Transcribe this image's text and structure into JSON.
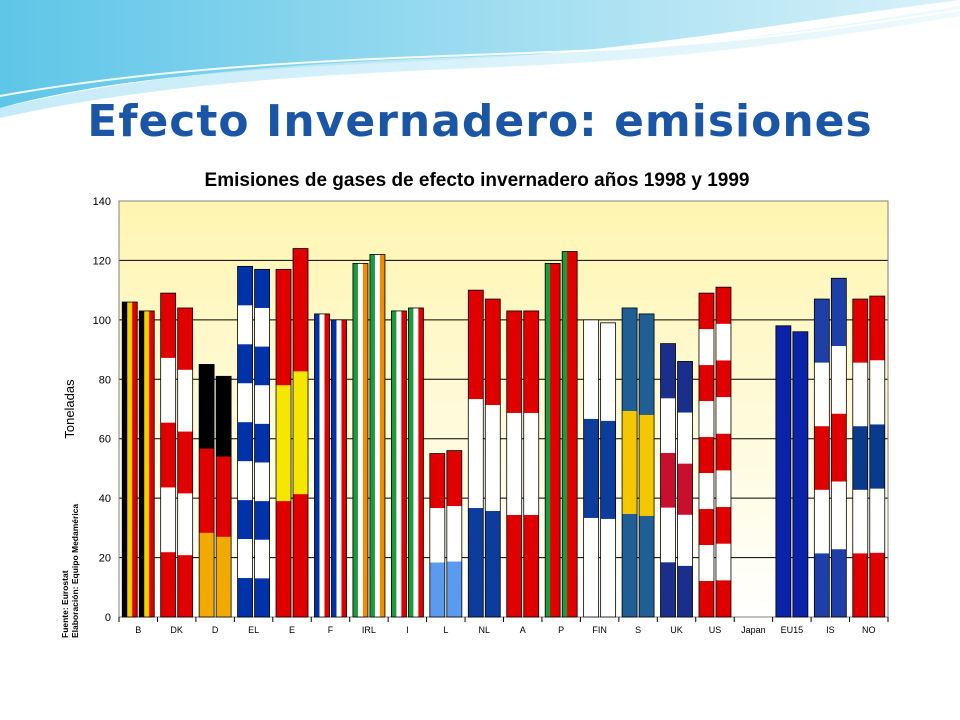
{
  "slide": {
    "title": "Efecto Invernadero: emisiones",
    "title_color": "#1a55a6"
  },
  "chart_data": {
    "type": "bar",
    "title": "Emisiones de gases de efecto invernadero años 1998 y 1999",
    "ylabel": "Toneladas",
    "ylim": [
      0,
      140
    ],
    "yticks": [
      0,
      20,
      40,
      60,
      80,
      100,
      120,
      140
    ],
    "grid": true,
    "plot_background": "#fff5b0",
    "source_lines": [
      "Fuente: Eurostat",
      "Elaboración: Equipo Medamérica"
    ],
    "categories": [
      "B",
      "DK",
      "D",
      "EL",
      "E",
      "F",
      "IRL",
      "I",
      "L",
      "NL",
      "A",
      "P",
      "FIN",
      "S",
      "UK",
      "US",
      "Japan",
      "EU15",
      "IS",
      "NO"
    ],
    "series": [
      {
        "values": [
          106,
          109,
          85,
          118,
          117,
          102,
          119,
          103,
          55,
          110,
          103,
          119,
          100,
          104,
          92,
          109,
          null,
          98,
          107,
          107
        ]
      },
      {
        "values": [
          103,
          104,
          81,
          117,
          124,
          100,
          122,
          104,
          56,
          107,
          103,
          123,
          99,
          102,
          86,
          111,
          null,
          96,
          114,
          108
        ]
      }
    ],
    "flag_stripes": {
      "B": {
        "dir": "v",
        "colors": [
          "#000000",
          "#f4d000",
          "#e00000"
        ]
      },
      "DK": {
        "dir": "h",
        "colors": [
          "#e00000",
          "#ffffff",
          "#e00000",
          "#ffffff",
          "#e00000"
        ]
      },
      "D": {
        "dir": "h",
        "colors": [
          "#000000",
          "#e00000",
          "#f2a900"
        ]
      },
      "EL": {
        "dir": "h",
        "colors": [
          "#0033aa",
          "#ffffff",
          "#0033aa",
          "#ffffff",
          "#0033aa",
          "#ffffff",
          "#0033aa",
          "#ffffff",
          "#0033aa"
        ]
      },
      "E": {
        "dir": "h",
        "colors": [
          "#e00000",
          "#f7e600",
          "#e00000"
        ]
      },
      "F": {
        "dir": "v",
        "colors": [
          "#0033aa",
          "#ffffff",
          "#e00000"
        ]
      },
      "IRL": {
        "dir": "v",
        "colors": [
          "#1c9a3c",
          "#ffffff",
          "#f28c00"
        ]
      },
      "I": {
        "dir": "v",
        "colors": [
          "#1c9a3c",
          "#ffffff",
          "#e00000"
        ]
      },
      "L": {
        "dir": "h",
        "colors": [
          "#e00000",
          "#ffffff",
          "#5b9bef"
        ]
      },
      "NL": {
        "dir": "h",
        "colors": [
          "#e00000",
          "#ffffff",
          "#0c3c9c"
        ]
      },
      "A": {
        "dir": "h",
        "colors": [
          "#e00000",
          "#ffffff",
          "#e00000"
        ]
      },
      "P": {
        "dir": "v",
        "colors": [
          "#1c9a3c",
          "#e00000",
          "#e00000"
        ]
      },
      "FIN": {
        "dir": "h",
        "colors": [
          "#ffffff",
          "#0c3c9c",
          "#ffffff"
        ]
      },
      "S": {
        "dir": "h",
        "colors": [
          "#1f5f96",
          "#f4c800",
          "#1f5f96"
        ]
      },
      "UK": {
        "dir": "h",
        "colors": [
          "#1a2f8c",
          "#ffffff",
          "#c8102e",
          "#ffffff",
          "#1a2f8c"
        ]
      },
      "US": {
        "dir": "h",
        "colors": [
          "#e00000",
          "#ffffff",
          "#e00000",
          "#ffffff",
          "#e00000",
          "#ffffff",
          "#e00000",
          "#ffffff",
          "#e00000"
        ]
      },
      "Japan": {
        "dir": "h",
        "colors": [
          "#ffffff"
        ]
      },
      "EU15": {
        "dir": "h",
        "colors": [
          "#0a22a8"
        ]
      },
      "IS": {
        "dir": "h",
        "colors": [
          "#1f3fa8",
          "#ffffff",
          "#e00000",
          "#ffffff",
          "#1f3fa8"
        ]
      },
      "NO": {
        "dir": "h",
        "colors": [
          "#e00000",
          "#ffffff",
          "#0a3a8c",
          "#ffffff",
          "#e00000"
        ]
      }
    }
  }
}
